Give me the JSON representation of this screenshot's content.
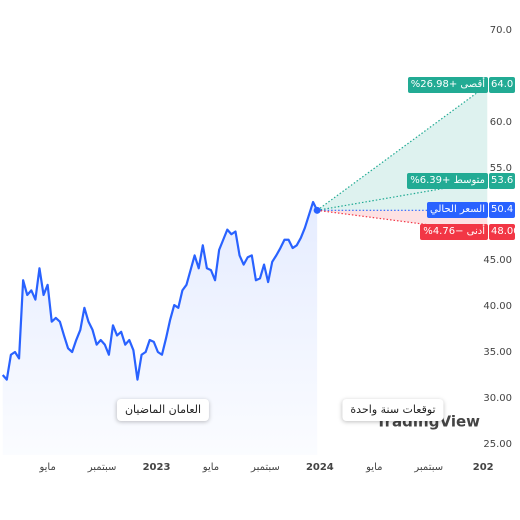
{
  "chart_data": {
    "type": "line",
    "series": [
      {
        "color": "#2962ff",
        "x": [
          0.7,
          1,
          1.3,
          1.6,
          1.9,
          2.2,
          2.5,
          2.8,
          3.1,
          3.4,
          3.7,
          4,
          4.3,
          4.6,
          4.9,
          5.2,
          5.5,
          5.8,
          6.1,
          6.4,
          6.7,
          7,
          7.3,
          7.6,
          7.9,
          8.2,
          8.5,
          8.8,
          9.1,
          9.4,
          9.7,
          10,
          10.3,
          10.6,
          10.9,
          11.2,
          11.5,
          11.8,
          12.1,
          12.4,
          12.7,
          13,
          13.3,
          13.6,
          13.9,
          14.2,
          14.5,
          14.8,
          15.1,
          15.4,
          15.7,
          16,
          16.3,
          16.6,
          16.9,
          17.2,
          17.5,
          17.8,
          18.1,
          18.4,
          18.7,
          19,
          19.3,
          19.6,
          19.9,
          20.2,
          20.5,
          20.8,
          21.1,
          21.4,
          21.7,
          22,
          22.3,
          22.6,
          22.9,
          23.2,
          23.5,
          23.8
        ],
        "values": [
          32.5,
          32,
          34.7,
          35,
          34.3,
          42.8,
          41.2,
          41.7,
          40.7,
          44.1,
          41.2,
          42.3,
          38.3,
          38.7,
          38.3,
          36.8,
          35.4,
          35,
          36.3,
          37.4,
          39.8,
          38.3,
          37.4,
          35.8,
          36.3,
          35.8,
          34.7,
          37.9,
          36.8,
          37.2,
          35.8,
          36.3,
          35.2,
          32,
          34.7,
          35,
          36.3,
          36.1,
          35,
          34.7,
          36.5,
          38.5,
          40.1,
          39.8,
          41.7,
          42.3,
          43.9,
          45.5,
          44.1,
          46.6,
          44.1,
          43.9,
          42.8,
          46.1,
          47.2,
          48.3,
          47.8,
          48.1,
          45.5,
          44.5,
          45.3,
          45.5,
          42.8,
          43,
          44.5,
          42.6,
          44.8,
          45.5,
          46.3,
          47.2,
          47.2,
          46.3,
          46.6,
          47.4,
          48.5,
          49.9,
          51.3,
          50.4
        ]
      }
    ],
    "xlim": [
      0.5,
      36.5
    ],
    "xticks": [
      {
        "value": 4,
        "label": "مايو"
      },
      {
        "value": 8,
        "label": "سبتمبر"
      },
      {
        "value": 12,
        "label": "2023"
      },
      {
        "value": 16,
        "label": "مايو"
      },
      {
        "value": 20,
        "label": "سبتمبر"
      },
      {
        "value": 24,
        "label": "2024"
      },
      {
        "value": 28,
        "label": "مايو"
      },
      {
        "value": 32,
        "label": "سبتمبر"
      },
      {
        "value": 36,
        "label": "202"
      }
    ],
    "ylim": [
      25,
      70
    ],
    "yticks": [
      {
        "value": 70,
        "label": "70.0"
      },
      {
        "value": 60,
        "label": "60.0"
      },
      {
        "value": 55,
        "label": "55.0"
      },
      {
        "value": 45,
        "label": "45.00"
      },
      {
        "value": 40,
        "label": "40.00"
      },
      {
        "value": 35,
        "label": "35.00"
      },
      {
        "value": 30,
        "label": "30.00"
      },
      {
        "value": 25,
        "label": "25.00"
      }
    ],
    "forecast": {
      "end_x": 36.3,
      "targets": [
        {
          "label": "أقصى +26.98%",
          "value": 64,
          "value_label": "64.0",
          "color": "#22ab94"
        },
        {
          "label": "متوسط +6.39%",
          "value": 53.6,
          "value_label": "53.6",
          "color": "#22ab94"
        },
        {
          "label": "السعر الحالي",
          "value": 50.4,
          "value_label": "50.4",
          "color": "#2962ff"
        },
        {
          "label": "أدنى −4.76%",
          "value": 48,
          "value_label": "48.00",
          "color": "#f23645"
        }
      ]
    },
    "notes": [
      "العامان الماضيان",
      "توقعات سنة واحدة"
    ],
    "logo": "TradingView"
  }
}
